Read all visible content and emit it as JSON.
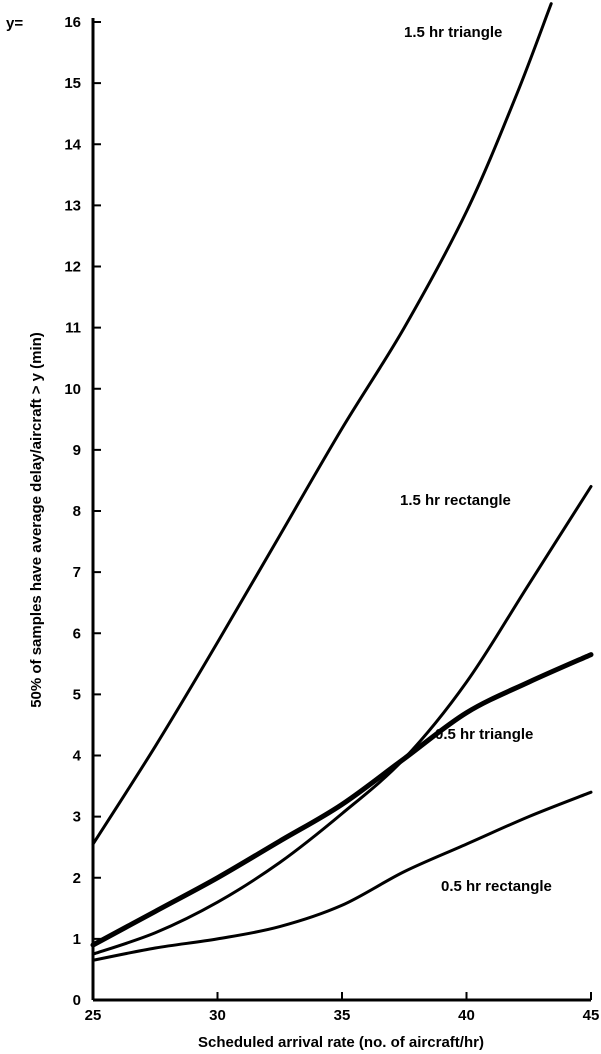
{
  "chart_data": {
    "type": "line",
    "title": "",
    "xlabel": "Scheduled arrival rate (no. of aircraft/hr)",
    "ylabel": "50% of samples have average delay/aircraft > y (min)",
    "y_prefix_label": "y=",
    "xlim": [
      25,
      45
    ],
    "ylim": [
      0,
      16
    ],
    "x_ticks": [
      25,
      30,
      35,
      40,
      45
    ],
    "y_ticks": [
      0,
      1,
      2,
      3,
      4,
      5,
      6,
      7,
      8,
      9,
      10,
      11,
      12,
      13,
      14,
      15,
      16
    ],
    "grid": false,
    "legend": "none (curves labeled directly)",
    "line_color": "#000000",
    "series": [
      {
        "name": "1.5 hr triangle",
        "x": [
          25,
          27.5,
          30,
          32.5,
          35,
          37.5,
          40,
          42,
          43.4
        ],
        "values": [
          2.55,
          4.15,
          5.85,
          7.6,
          9.35,
          11.0,
          12.9,
          14.8,
          16.3
        ]
      },
      {
        "name": "1.5 hr rectangle",
        "x": [
          25,
          27.5,
          30,
          32.5,
          35,
          37.5,
          40,
          42.5,
          45
        ],
        "values": [
          0.75,
          1.1,
          1.6,
          2.25,
          3.05,
          3.95,
          5.2,
          6.8,
          8.4
        ]
      },
      {
        "name": "0.5 hr triangle",
        "x": [
          25,
          27.5,
          30,
          32.5,
          35,
          37.5,
          40,
          42.5,
          45
        ],
        "values": [
          0.9,
          1.45,
          2.0,
          2.6,
          3.2,
          3.95,
          4.7,
          5.2,
          5.65
        ]
      },
      {
        "name": "0.5 hr rectangle",
        "x": [
          25,
          27.5,
          30,
          32.5,
          35,
          37.5,
          40,
          42.5,
          45
        ],
        "values": [
          0.65,
          0.85,
          1.0,
          1.2,
          1.55,
          2.1,
          2.55,
          3.0,
          3.4
        ]
      }
    ]
  }
}
